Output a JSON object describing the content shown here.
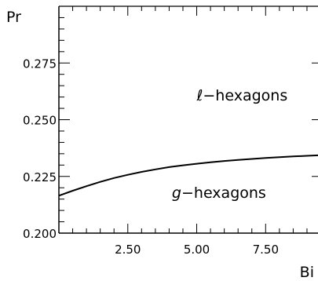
{
  "chart_data": {
    "type": "line",
    "xlabel": "Bi",
    "ylabel": "Pr",
    "xlim": [
      0,
      9.4
    ],
    "ylim": [
      0.2,
      0.3
    ],
    "x_ticks": [
      2.5,
      5.0,
      7.5
    ],
    "x_tick_labels": [
      "2.50",
      "5.00",
      "7.50"
    ],
    "y_ticks": [
      0.2,
      0.225,
      0.25,
      0.275
    ],
    "y_tick_labels": [
      "0.200",
      "0.225",
      "0.250",
      "0.275"
    ],
    "grid": false,
    "annotations": [
      {
        "text_l": "ℓ",
        "text": "−hexagons",
        "x": 5.0,
        "y": 0.2585
      },
      {
        "text_l": "g",
        "text": "−hexagons",
        "x": 4.1,
        "y": 0.2155
      }
    ],
    "series": [
      {
        "x": [
          0.0,
          0.5,
          1.0,
          1.5,
          2.0,
          2.5,
          3.0,
          3.5,
          4.0,
          4.5,
          5.0,
          5.5,
          6.0,
          6.5,
          7.0,
          7.5,
          8.0,
          8.5,
          9.0,
          9.4
        ],
        "y": [
          0.2165,
          0.2187,
          0.2207,
          0.2226,
          0.2243,
          0.2257,
          0.227,
          0.2281,
          0.2291,
          0.2299,
          0.2306,
          0.2312,
          0.2318,
          0.2323,
          0.2327,
          0.2331,
          0.2335,
          0.2338,
          0.2341,
          0.2343
        ]
      }
    ]
  }
}
